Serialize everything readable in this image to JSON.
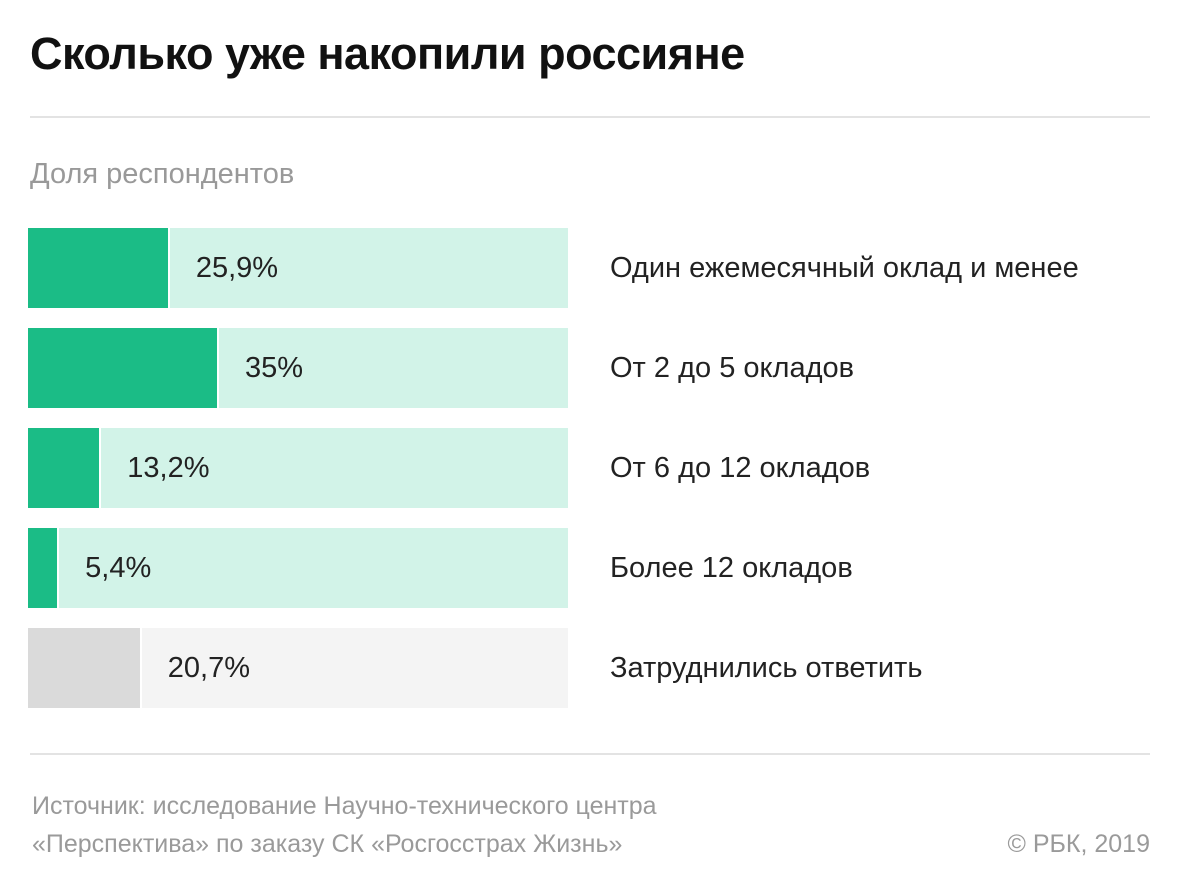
{
  "title": "Сколько уже накопили россияне",
  "subtitle": "Доля респондентов",
  "colors": {
    "fill": "#1bbc86",
    "track": "#d2f3e8",
    "fill_neutral": "#dadada",
    "track_neutral": "#f4f4f4"
  },
  "chart_data": {
    "type": "bar",
    "title": "Сколько уже накопили россияне",
    "ylabel": "Доля респондентов",
    "xlim": [
      0,
      100
    ],
    "categories": [
      "Один ежемесячный оклад и менее",
      "От 2 до 5 окладов",
      "От 6 до 12 окладов",
      "Более 12 окладов",
      "Затруднились ответить"
    ],
    "values": [
      25.9,
      35,
      13.2,
      5.4,
      20.7
    ],
    "value_labels": [
      "25,9%",
      "35%",
      "13,2%",
      "5,4%",
      "20,7%"
    ],
    "grid": false
  },
  "footer": {
    "source_lines": [
      "Источник: исследование Научно-технического центра",
      "«Перспектива» по заказу СК «Росгосстрах Жизнь»"
    ],
    "copyright": "© РБК, 2019"
  }
}
